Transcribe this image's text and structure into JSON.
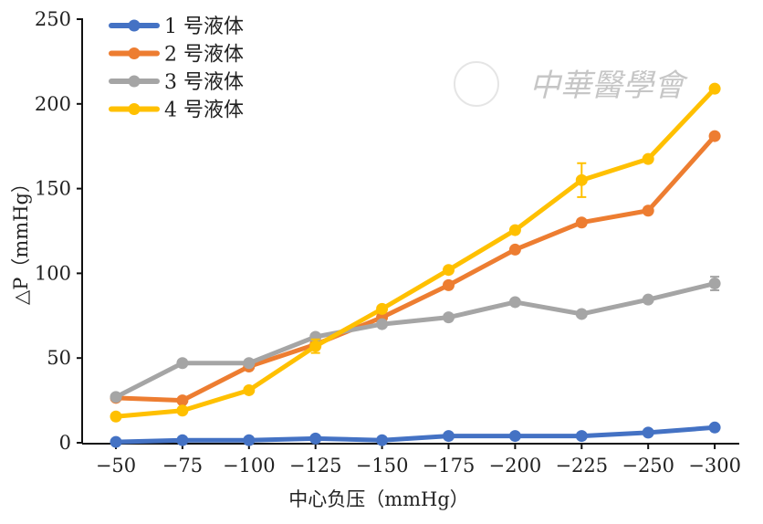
{
  "chart_data": {
    "type": "line",
    "title": "",
    "xlabel": "中心负压（mmHg）",
    "ylabel": "△P（mmHg）",
    "categories": [
      "−50",
      "−75",
      "−100",
      "−125",
      "−150",
      "−175",
      "−200",
      "−225",
      "−250",
      "−300"
    ],
    "ylim": [
      0,
      250
    ],
    "yticks": [
      "0",
      "50",
      "100",
      "150",
      "200",
      "250"
    ],
    "grid": false,
    "legend_position": "top-left",
    "series": [
      {
        "name": "1 号液体",
        "color": "#4472C4",
        "values": [
          0.5,
          1.5,
          1.5,
          2.5,
          1.5,
          4,
          4,
          4,
          6,
          9
        ],
        "errors": [
          0,
          0,
          0,
          0,
          0,
          0,
          0,
          0,
          0,
          0
        ]
      },
      {
        "name": "2 号液体",
        "color": "#ED7D31",
        "values": [
          26.5,
          25,
          45,
          58,
          74,
          93,
          114,
          130,
          137,
          181
        ],
        "errors": [
          0,
          0,
          0,
          0,
          0,
          0,
          0,
          0,
          0,
          0
        ]
      },
      {
        "name": "3 号液体",
        "color": "#A5A5A5",
        "values": [
          27,
          47,
          47,
          62.5,
          70,
          74,
          83,
          76,
          84.5,
          94
        ],
        "errors": [
          0,
          0,
          0,
          0,
          0,
          0,
          0,
          0,
          0,
          4
        ]
      },
      {
        "name": "4 号液体",
        "color": "#FFC000",
        "values": [
          15.5,
          19,
          31,
          57,
          79,
          102,
          125.5,
          155,
          167.5,
          209
        ],
        "errors": [
          0,
          0,
          0,
          4,
          0,
          0,
          0,
          10,
          0,
          0
        ]
      }
    ],
    "watermark": "中華醫學會"
  }
}
